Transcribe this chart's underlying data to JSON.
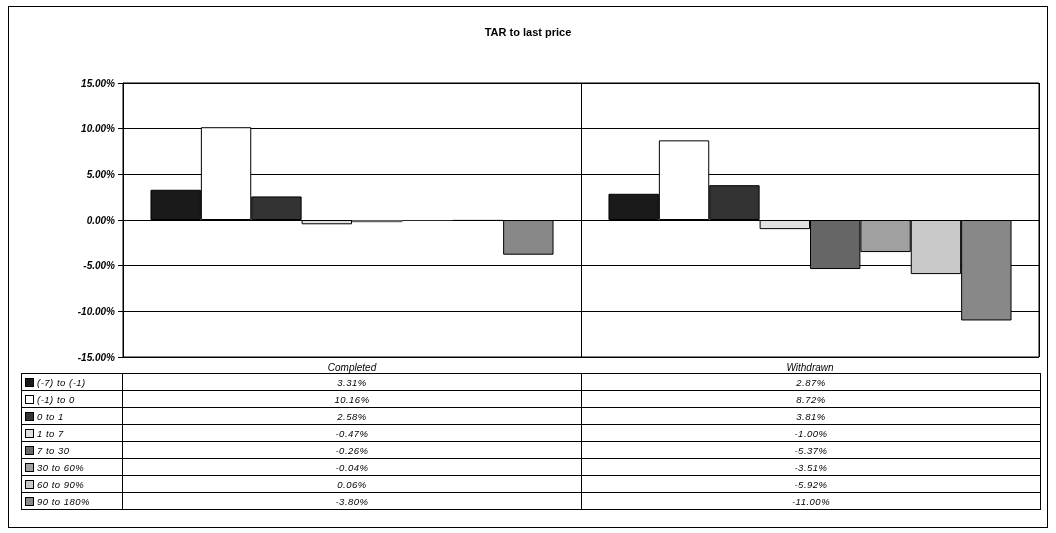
{
  "chart_data": {
    "type": "bar",
    "title": "TAR to last price",
    "categories": [
      "Completed",
      "Withdrawn"
    ],
    "series": [
      {
        "name": "(-7) to (-1)",
        "color": "#1a1a1a",
        "values": [
          3.31,
          2.87
        ],
        "value_labels": [
          "3.31%",
          "2.87%"
        ]
      },
      {
        "name": "(-1) to 0",
        "color": "#ffffff",
        "values": [
          10.16,
          8.72
        ],
        "value_labels": [
          "10.16%",
          "8.72%"
        ]
      },
      {
        "name": "0 to 1",
        "color": "#333333",
        "values": [
          2.58,
          3.81
        ],
        "value_labels": [
          "2.58%",
          "3.81%"
        ]
      },
      {
        "name": "1 to 7",
        "color": "#e0e0e0",
        "values": [
          -0.47,
          -1.0
        ],
        "value_labels": [
          "-0.47%",
          "-1.00%"
        ]
      },
      {
        "name": "7 to 30",
        "color": "#666666",
        "values": [
          -0.26,
          -5.37
        ],
        "value_labels": [
          "-0.26%",
          "-5.37%"
        ]
      },
      {
        "name": "30 to 60%",
        "color": "#a0a0a0",
        "values": [
          -0.04,
          -3.51
        ],
        "value_labels": [
          "-0.04%",
          "-3.51%"
        ]
      },
      {
        "name": "60 to 90%",
        "color": "#c8c8c8",
        "values": [
          0.06,
          -5.92
        ],
        "value_labels": [
          "0.06%",
          "-5.92%"
        ]
      },
      {
        "name": "90 to 180%",
        "color": "#888888",
        "values": [
          -3.8,
          -11.0
        ],
        "value_labels": [
          "-3.80%",
          "-11.00%"
        ]
      }
    ],
    "ylim": [
      -15,
      15
    ],
    "yticks": [
      {
        "value": -15,
        "label": "-15.00%"
      },
      {
        "value": -10,
        "label": "-10.00%"
      },
      {
        "value": -5,
        "label": "-5.00%"
      },
      {
        "value": 0,
        "label": "0.00%"
      },
      {
        "value": 5,
        "label": "5.00%"
      },
      {
        "value": 10,
        "label": "10.00%"
      },
      {
        "value": 15,
        "label": "15.00%"
      }
    ],
    "grid": true,
    "legend": "bottom left"
  }
}
